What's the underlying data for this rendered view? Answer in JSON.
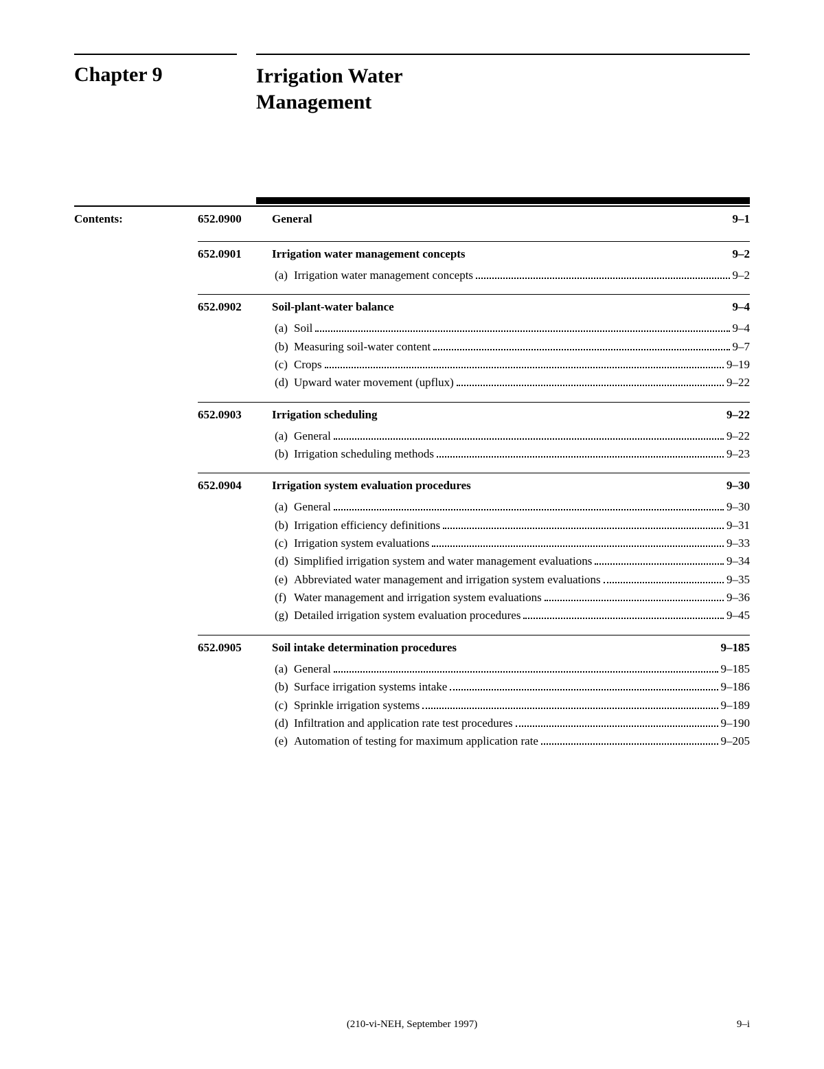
{
  "chapter_label": "Chapter 9",
  "chapter_title": "Irrigation Water\nManagement",
  "contents_label": "Contents:",
  "footer_center": "(210-vi-NEH, September 1997)",
  "footer_right": "9–i",
  "sections": [
    {
      "num": "652.0900",
      "title": "General",
      "page": "9–1",
      "subs": []
    },
    {
      "num": "652.0901",
      "title": "Irrigation water management concepts",
      "page": "9–2",
      "subs": [
        {
          "letter": "(a)",
          "title": "Irrigation water management concepts",
          "page": "9–2"
        }
      ]
    },
    {
      "num": "652.0902",
      "title": "Soil-plant-water balance",
      "page": "9–4",
      "subs": [
        {
          "letter": "(a)",
          "title": "Soil",
          "page": "9–4"
        },
        {
          "letter": "(b)",
          "title": "Measuring soil-water content",
          "page": "9–7"
        },
        {
          "letter": "(c)",
          "title": "Crops",
          "page": "9–19"
        },
        {
          "letter": "(d)",
          "title": "Upward water movement (upflux)",
          "page": "9–22"
        }
      ]
    },
    {
      "num": "652.0903",
      "title": "Irrigation scheduling",
      "page": "9–22",
      "subs": [
        {
          "letter": "(a)",
          "title": "General",
          "page": "9–22"
        },
        {
          "letter": "(b)",
          "title": "Irrigation scheduling methods",
          "page": "9–23"
        }
      ]
    },
    {
      "num": "652.0904",
      "title": "Irrigation system evaluation procedures",
      "page": "9–30",
      "subs": [
        {
          "letter": "(a)",
          "title": "General",
          "page": "9–30"
        },
        {
          "letter": "(b)",
          "title": "Irrigation efficiency definitions",
          "page": "9–31"
        },
        {
          "letter": "(c)",
          "title": "Irrigation system evaluations",
          "page": "9–33"
        },
        {
          "letter": "(d)",
          "title": "Simplified irrigation system and water management evaluations",
          "page": "9–34"
        },
        {
          "letter": "(e)",
          "title": "Abbreviated water management and irrigation system evaluations",
          "page": "9–35"
        },
        {
          "letter": "(f)",
          "title": "Water management and irrigation system evaluations",
          "page": "9–36"
        },
        {
          "letter": "(g)",
          "title": "Detailed irrigation system evaluation procedures",
          "page": "9–45"
        }
      ]
    },
    {
      "num": "652.0905",
      "title": "Soil intake determination procedures",
      "page": "9–185",
      "subs": [
        {
          "letter": "(a)",
          "title": "General",
          "page": "9–185"
        },
        {
          "letter": "(b)",
          "title": "Surface irrigation systems intake",
          "page": "9–186"
        },
        {
          "letter": "(c)",
          "title": "Sprinkle irrigation systems",
          "page": "9–189"
        },
        {
          "letter": "(d)",
          "title": "Infiltration and application rate test procedures",
          "page": "9–190"
        },
        {
          "letter": "(e)",
          "title": "Automation of testing for maximum application rate",
          "page": "9–205"
        }
      ]
    }
  ]
}
